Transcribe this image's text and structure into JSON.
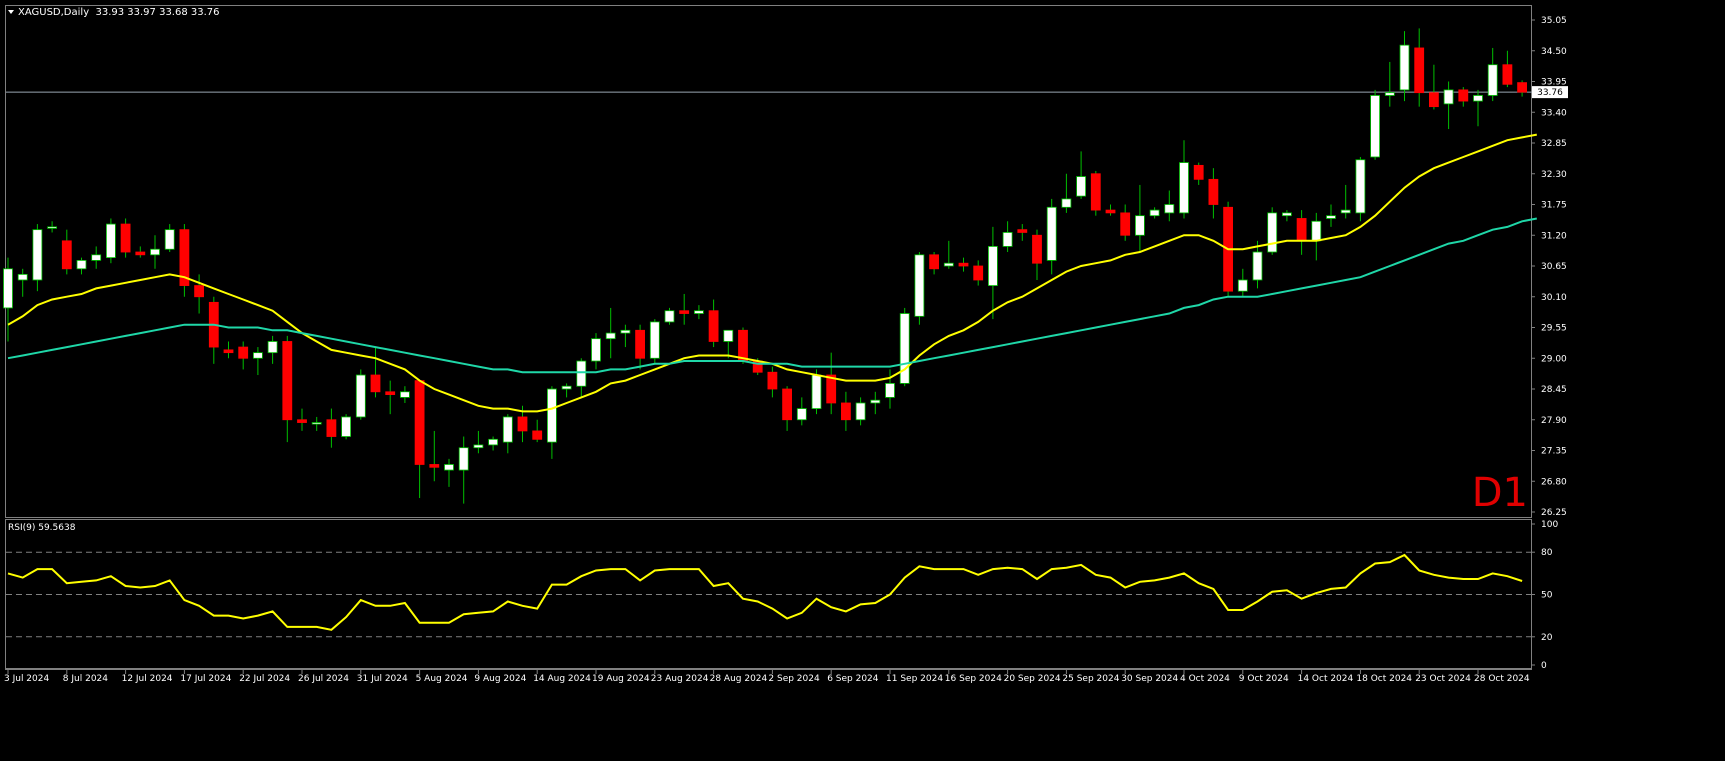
{
  "header": {
    "symbol_line": "XAGUSD,Daily  33.93 33.97 33.68 33.76"
  },
  "price_panel": {
    "current_price_label": "33.76",
    "current_price": 33.76,
    "timeframe_label": "D1"
  },
  "rsi_panel": {
    "label": "RSI(9) 59.5638",
    "levels": [
      80,
      50,
      20
    ],
    "axis_ticks": [
      "100",
      "80",
      "50",
      "20",
      "0"
    ]
  },
  "colors": {
    "background": "#000000",
    "bull": "#ffffff",
    "bear": "#ff0000",
    "wick": "#00c000",
    "ma_fast": "#ffff00",
    "ma_slow": "#1fd7a8",
    "rsi": "#ffff00",
    "grid": "#808080",
    "timeframe_label": "#e00000"
  },
  "chart_data": [
    {
      "type": "candlestick",
      "title": "XAGUSD,Daily",
      "ohlc_header": [
        33.93,
        33.97,
        33.68,
        33.76
      ],
      "ylim": [
        26.25,
        35.15
      ],
      "y_ticks": [
        "35.05",
        "34.50",
        "33.95",
        "33.40",
        "32.85",
        "32.30",
        "31.75",
        "31.20",
        "30.65",
        "30.10",
        "29.55",
        "29.00",
        "28.45",
        "27.90",
        "27.35",
        "26.80",
        "26.25"
      ],
      "x_tick_labels": [
        "3 Jul 2024",
        "8 Jul 2024",
        "12 Jul 2024",
        "17 Jul 2024",
        "22 Jul 2024",
        "26 Jul 2024",
        "31 Jul 2024",
        "5 Aug 2024",
        "9 Aug 2024",
        "14 Aug 2024",
        "19 Aug 2024",
        "23 Aug 2024",
        "28 Aug 2024",
        "2 Sep 2024",
        "6 Sep 2024",
        "11 Sep 2024",
        "16 Sep 2024",
        "20 Sep 2024",
        "25 Sep 2024",
        "30 Sep 2024",
        "4 Oct 2024",
        "9 Oct 2024",
        "14 Oct 2024",
        "18 Oct 2024",
        "23 Oct 2024",
        "28 Oct 2024"
      ],
      "tick_bar_index": [
        0,
        4,
        8,
        12,
        16,
        20,
        24,
        28,
        32,
        36,
        40,
        44,
        48,
        52,
        56,
        60,
        64,
        68,
        72,
        76,
        80,
        84,
        88,
        92,
        96,
        100
      ],
      "candles": [
        {
          "o": 29.9,
          "h": 30.8,
          "l": 29.3,
          "c": 30.6
        },
        {
          "o": 30.4,
          "h": 30.6,
          "l": 30.1,
          "c": 30.5
        },
        {
          "o": 30.4,
          "h": 31.4,
          "l": 30.2,
          "c": 31.3
        },
        {
          "o": 31.35,
          "h": 31.45,
          "l": 31.25,
          "c": 31.35
        },
        {
          "o": 31.1,
          "h": 31.3,
          "l": 30.5,
          "c": 30.6
        },
        {
          "o": 30.6,
          "h": 30.8,
          "l": 30.5,
          "c": 30.75
        },
        {
          "o": 30.75,
          "h": 31.0,
          "l": 30.6,
          "c": 30.85
        },
        {
          "o": 30.8,
          "h": 31.5,
          "l": 30.7,
          "c": 31.4
        },
        {
          "o": 31.4,
          "h": 31.5,
          "l": 30.8,
          "c": 30.9
        },
        {
          "o": 30.9,
          "h": 31.0,
          "l": 30.8,
          "c": 30.85
        },
        {
          "o": 30.85,
          "h": 31.2,
          "l": 30.6,
          "c": 30.95
        },
        {
          "o": 30.95,
          "h": 31.4,
          "l": 30.9,
          "c": 31.3
        },
        {
          "o": 31.3,
          "h": 31.4,
          "l": 30.1,
          "c": 30.3
        },
        {
          "o": 30.3,
          "h": 30.5,
          "l": 29.8,
          "c": 30.1
        },
        {
          "o": 30.0,
          "h": 30.1,
          "l": 28.9,
          "c": 29.2
        },
        {
          "o": 29.15,
          "h": 29.3,
          "l": 29.0,
          "c": 29.1
        },
        {
          "o": 29.2,
          "h": 29.3,
          "l": 28.8,
          "c": 29.0
        },
        {
          "o": 29.0,
          "h": 29.2,
          "l": 28.7,
          "c": 29.1
        },
        {
          "o": 29.1,
          "h": 29.4,
          "l": 28.9,
          "c": 29.3
        },
        {
          "o": 29.3,
          "h": 29.4,
          "l": 27.5,
          "c": 27.9
        },
        {
          "o": 27.9,
          "h": 28.1,
          "l": 27.7,
          "c": 27.85
        },
        {
          "o": 27.85,
          "h": 27.95,
          "l": 27.7,
          "c": 27.85
        },
        {
          "o": 27.9,
          "h": 28.1,
          "l": 27.4,
          "c": 27.6
        },
        {
          "o": 27.6,
          "h": 28.0,
          "l": 27.55,
          "c": 27.95
        },
        {
          "o": 27.95,
          "h": 28.8,
          "l": 27.9,
          "c": 28.7
        },
        {
          "o": 28.7,
          "h": 29.2,
          "l": 28.3,
          "c": 28.4
        },
        {
          "o": 28.4,
          "h": 28.6,
          "l": 28.0,
          "c": 28.35
        },
        {
          "o": 28.3,
          "h": 28.5,
          "l": 28.2,
          "c": 28.4
        },
        {
          "o": 28.6,
          "h": 28.6,
          "l": 26.5,
          "c": 27.1
        },
        {
          "o": 27.1,
          "h": 27.7,
          "l": 26.8,
          "c": 27.05
        },
        {
          "o": 27.0,
          "h": 27.2,
          "l": 26.7,
          "c": 27.1
        },
        {
          "o": 27.0,
          "h": 27.6,
          "l": 26.4,
          "c": 27.4
        },
        {
          "o": 27.4,
          "h": 27.7,
          "l": 27.3,
          "c": 27.45
        },
        {
          "o": 27.45,
          "h": 27.6,
          "l": 27.35,
          "c": 27.55
        },
        {
          "o": 27.5,
          "h": 28.0,
          "l": 27.3,
          "c": 27.95
        },
        {
          "o": 27.95,
          "h": 28.15,
          "l": 27.5,
          "c": 27.7
        },
        {
          "o": 27.7,
          "h": 27.9,
          "l": 27.5,
          "c": 27.55
        },
        {
          "o": 27.5,
          "h": 28.5,
          "l": 27.2,
          "c": 28.45
        },
        {
          "o": 28.45,
          "h": 28.55,
          "l": 28.3,
          "c": 28.5
        },
        {
          "o": 28.5,
          "h": 29.0,
          "l": 28.3,
          "c": 28.95
        },
        {
          "o": 28.95,
          "h": 29.45,
          "l": 28.8,
          "c": 29.35
        },
        {
          "o": 29.35,
          "h": 29.9,
          "l": 29.0,
          "c": 29.45
        },
        {
          "o": 29.45,
          "h": 29.6,
          "l": 29.2,
          "c": 29.5
        },
        {
          "o": 29.5,
          "h": 29.6,
          "l": 28.8,
          "c": 29.0
        },
        {
          "o": 29.0,
          "h": 29.7,
          "l": 28.9,
          "c": 29.65
        },
        {
          "o": 29.65,
          "h": 29.9,
          "l": 29.6,
          "c": 29.85
        },
        {
          "o": 29.85,
          "h": 30.15,
          "l": 29.6,
          "c": 29.8
        },
        {
          "o": 29.8,
          "h": 29.95,
          "l": 29.7,
          "c": 29.85
        },
        {
          "o": 29.85,
          "h": 30.05,
          "l": 29.2,
          "c": 29.3
        },
        {
          "o": 29.3,
          "h": 29.5,
          "l": 29.0,
          "c": 29.5
        },
        {
          "o": 29.5,
          "h": 29.55,
          "l": 28.9,
          "c": 28.95
        },
        {
          "o": 28.95,
          "h": 29.0,
          "l": 28.7,
          "c": 28.75
        },
        {
          "o": 28.75,
          "h": 28.85,
          "l": 28.3,
          "c": 28.45
        },
        {
          "o": 28.45,
          "h": 28.5,
          "l": 27.7,
          "c": 27.9
        },
        {
          "o": 27.9,
          "h": 28.3,
          "l": 27.8,
          "c": 28.1
        },
        {
          "o": 28.1,
          "h": 28.8,
          "l": 28.0,
          "c": 28.7
        },
        {
          "o": 28.7,
          "h": 29.1,
          "l": 28.0,
          "c": 28.2
        },
        {
          "o": 28.2,
          "h": 28.4,
          "l": 27.7,
          "c": 27.9
        },
        {
          "o": 27.9,
          "h": 28.3,
          "l": 27.8,
          "c": 28.2
        },
        {
          "o": 28.2,
          "h": 28.4,
          "l": 28.0,
          "c": 28.25
        },
        {
          "o": 28.3,
          "h": 28.8,
          "l": 28.1,
          "c": 28.55
        },
        {
          "o": 28.55,
          "h": 29.9,
          "l": 28.5,
          "c": 29.8
        },
        {
          "o": 29.75,
          "h": 30.9,
          "l": 29.6,
          "c": 30.85
        },
        {
          "o": 30.85,
          "h": 30.9,
          "l": 30.5,
          "c": 30.6
        },
        {
          "o": 30.65,
          "h": 31.1,
          "l": 30.6,
          "c": 30.7
        },
        {
          "o": 30.7,
          "h": 30.8,
          "l": 30.55,
          "c": 30.65
        },
        {
          "o": 30.65,
          "h": 30.75,
          "l": 30.3,
          "c": 30.4
        },
        {
          "o": 30.3,
          "h": 31.35,
          "l": 29.7,
          "c": 31.0
        },
        {
          "o": 31.0,
          "h": 31.45,
          "l": 30.9,
          "c": 31.25
        },
        {
          "o": 31.3,
          "h": 31.4,
          "l": 31.1,
          "c": 31.25
        },
        {
          "o": 31.2,
          "h": 31.3,
          "l": 30.4,
          "c": 30.7
        },
        {
          "o": 30.75,
          "h": 31.85,
          "l": 30.5,
          "c": 31.7
        },
        {
          "o": 31.7,
          "h": 32.3,
          "l": 31.6,
          "c": 31.85
        },
        {
          "o": 31.9,
          "h": 32.7,
          "l": 31.85,
          "c": 32.25
        },
        {
          "o": 32.3,
          "h": 32.35,
          "l": 31.55,
          "c": 31.65
        },
        {
          "o": 31.65,
          "h": 31.75,
          "l": 31.55,
          "c": 31.6
        },
        {
          "o": 31.6,
          "h": 31.75,
          "l": 31.1,
          "c": 31.2
        },
        {
          "o": 31.2,
          "h": 32.1,
          "l": 30.9,
          "c": 31.55
        },
        {
          "o": 31.55,
          "h": 31.7,
          "l": 31.5,
          "c": 31.65
        },
        {
          "o": 31.6,
          "h": 32.0,
          "l": 31.45,
          "c": 31.75
        },
        {
          "o": 31.6,
          "h": 32.9,
          "l": 31.5,
          "c": 32.5
        },
        {
          "o": 32.45,
          "h": 32.5,
          "l": 32.1,
          "c": 32.2
        },
        {
          "o": 32.2,
          "h": 32.4,
          "l": 31.5,
          "c": 31.75
        },
        {
          "o": 31.7,
          "h": 31.8,
          "l": 30.1,
          "c": 30.2
        },
        {
          "o": 30.2,
          "h": 30.6,
          "l": 30.1,
          "c": 30.4
        },
        {
          "o": 30.4,
          "h": 31.1,
          "l": 30.25,
          "c": 30.9
        },
        {
          "o": 30.9,
          "h": 31.7,
          "l": 30.85,
          "c": 31.6
        },
        {
          "o": 31.55,
          "h": 31.65,
          "l": 31.45,
          "c": 31.6
        },
        {
          "o": 31.5,
          "h": 31.65,
          "l": 30.85,
          "c": 31.1
        },
        {
          "o": 31.1,
          "h": 31.6,
          "l": 30.75,
          "c": 31.45
        },
        {
          "o": 31.5,
          "h": 31.75,
          "l": 31.35,
          "c": 31.55
        },
        {
          "o": 31.6,
          "h": 32.1,
          "l": 31.5,
          "c": 31.65
        },
        {
          "o": 31.6,
          "h": 32.6,
          "l": 31.45,
          "c": 32.55
        },
        {
          "o": 32.6,
          "h": 33.8,
          "l": 32.55,
          "c": 33.7
        },
        {
          "o": 33.7,
          "h": 34.3,
          "l": 33.5,
          "c": 33.75
        },
        {
          "o": 33.8,
          "h": 34.85,
          "l": 33.6,
          "c": 34.6
        },
        {
          "o": 34.55,
          "h": 34.9,
          "l": 33.5,
          "c": 33.75
        },
        {
          "o": 33.75,
          "h": 34.25,
          "l": 33.45,
          "c": 33.5
        },
        {
          "o": 33.55,
          "h": 33.95,
          "l": 33.1,
          "c": 33.8
        },
        {
          "o": 33.8,
          "h": 33.85,
          "l": 33.5,
          "c": 33.6
        },
        {
          "o": 33.6,
          "h": 33.8,
          "l": 33.15,
          "c": 33.7
        },
        {
          "o": 33.7,
          "h": 34.55,
          "l": 33.6,
          "c": 34.25
        },
        {
          "o": 34.25,
          "h": 34.5,
          "l": 33.85,
          "c": 33.9
        },
        {
          "o": 33.93,
          "h": 33.97,
          "l": 33.68,
          "c": 33.76
        }
      ],
      "ma_fast": [
        29.6,
        29.75,
        29.95,
        30.05,
        30.1,
        30.15,
        30.25,
        30.3,
        30.35,
        30.4,
        30.45,
        30.5,
        30.45,
        30.35,
        30.25,
        30.15,
        30.05,
        29.95,
        29.85,
        29.65,
        29.45,
        29.3,
        29.15,
        29.1,
        29.05,
        29.0,
        28.9,
        28.8,
        28.6,
        28.45,
        28.35,
        28.25,
        28.15,
        28.1,
        28.1,
        28.05,
        28.05,
        28.1,
        28.2,
        28.3,
        28.4,
        28.55,
        28.6,
        28.7,
        28.8,
        28.9,
        29.0,
        29.05,
        29.05,
        29.05,
        29.0,
        28.95,
        28.9,
        28.8,
        28.75,
        28.7,
        28.65,
        28.6,
        28.6,
        28.6,
        28.65,
        28.8,
        29.05,
        29.25,
        29.4,
        29.5,
        29.65,
        29.85,
        30.0,
        30.1,
        30.25,
        30.4,
        30.55,
        30.65,
        30.7,
        30.75,
        30.85,
        30.9,
        31.0,
        31.1,
        31.2,
        31.2,
        31.1,
        30.95,
        30.95,
        31.0,
        31.05,
        31.1,
        31.1,
        31.1,
        31.15,
        31.2,
        31.35,
        31.55,
        31.8,
        32.05,
        32.25,
        32.4,
        32.5,
        32.6,
        32.7,
        32.8,
        32.9,
        32.95,
        33.0
      ],
      "ma_slow": [
        29.0,
        29.05,
        29.1,
        29.15,
        29.2,
        29.25,
        29.3,
        29.35,
        29.4,
        29.45,
        29.5,
        29.55,
        29.6,
        29.6,
        29.6,
        29.55,
        29.55,
        29.55,
        29.5,
        29.5,
        29.45,
        29.4,
        29.35,
        29.3,
        29.25,
        29.2,
        29.15,
        29.1,
        29.05,
        29.0,
        28.95,
        28.9,
        28.85,
        28.8,
        28.8,
        28.75,
        28.75,
        28.75,
        28.75,
        28.75,
        28.75,
        28.8,
        28.8,
        28.85,
        28.9,
        28.9,
        28.95,
        28.95,
        28.95,
        28.95,
        28.95,
        28.9,
        28.9,
        28.9,
        28.85,
        28.85,
        28.85,
        28.85,
        28.85,
        28.85,
        28.85,
        28.9,
        28.95,
        29.0,
        29.05,
        29.1,
        29.15,
        29.2,
        29.25,
        29.3,
        29.35,
        29.4,
        29.45,
        29.5,
        29.55,
        29.6,
        29.65,
        29.7,
        29.75,
        29.8,
        29.9,
        29.95,
        30.05,
        30.1,
        30.1,
        30.1,
        30.15,
        30.2,
        30.25,
        30.3,
        30.35,
        30.4,
        30.45,
        30.55,
        30.65,
        30.75,
        30.85,
        30.95,
        31.05,
        31.1,
        31.2,
        31.3,
        31.35,
        31.45,
        31.5
      ]
    },
    {
      "type": "line",
      "title": "RSI(9) 59.5638",
      "ylim": [
        0,
        100
      ],
      "levels": [
        80,
        50,
        20
      ],
      "series": [
        {
          "name": "RSI(9)",
          "values": [
            65,
            62,
            68,
            68,
            58,
            59,
            60,
            63,
            56,
            55,
            56,
            60,
            46,
            42,
            35,
            35,
            33,
            35,
            38,
            27,
            27,
            27,
            25,
            34,
            46,
            42,
            42,
            44,
            30,
            30,
            30,
            36,
            37,
            38,
            45,
            42,
            40,
            57,
            57,
            63,
            67,
            68,
            68,
            60,
            67,
            68,
            68,
            68,
            56,
            58,
            47,
            45,
            40,
            33,
            37,
            47,
            41,
            38,
            43,
            44,
            50,
            62,
            70,
            68,
            68,
            68,
            64,
            68,
            69,
            68,
            61,
            68,
            69,
            71,
            64,
            62,
            55,
            59,
            60,
            62,
            65,
            58,
            54,
            39,
            39,
            45,
            52,
            53,
            47,
            51,
            54,
            55,
            65,
            72,
            73,
            78,
            67,
            64,
            62,
            61,
            61,
            65,
            63,
            59.56
          ]
        }
      ]
    }
  ]
}
